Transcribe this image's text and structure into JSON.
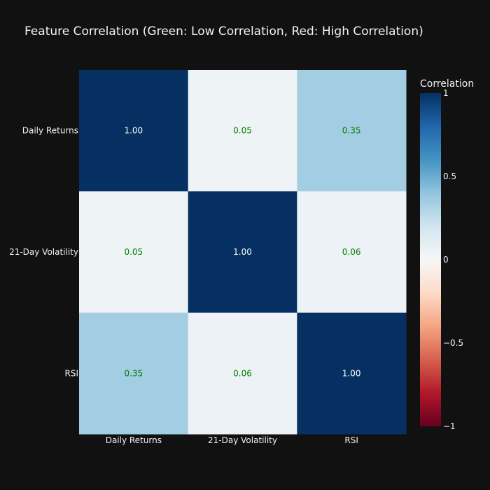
{
  "chart_data": {
    "type": "heatmap",
    "title": "Feature Correlation (Green: Low Correlation, Red: High Correlation)",
    "x_categories": [
      "Daily Returns",
      "21-Day Volatility",
      "RSI"
    ],
    "y_categories": [
      "Daily Returns",
      "21-Day Volatility",
      "RSI"
    ],
    "values": [
      [
        1.0,
        0.05,
        0.35
      ],
      [
        0.05,
        1.0,
        0.06
      ],
      [
        0.35,
        0.06,
        1.0
      ]
    ],
    "cell_labels": [
      [
        "1.00",
        "0.05",
        "0.35"
      ],
      [
        "0.05",
        "1.00",
        "0.06"
      ],
      [
        "0.35",
        "0.06",
        "1.00"
      ]
    ],
    "colorscale": "RdBu",
    "zmin": -1,
    "zmax": 1,
    "colorbar": {
      "title": "Correlation",
      "ticks": [
        1,
        0.5,
        0,
        -0.5,
        -1
      ],
      "tick_labels": [
        "1",
        "0.5",
        "0",
        "−0.5",
        "−1"
      ]
    },
    "text_colors": {
      "high": "#ffffff",
      "low": "#008000"
    }
  }
}
